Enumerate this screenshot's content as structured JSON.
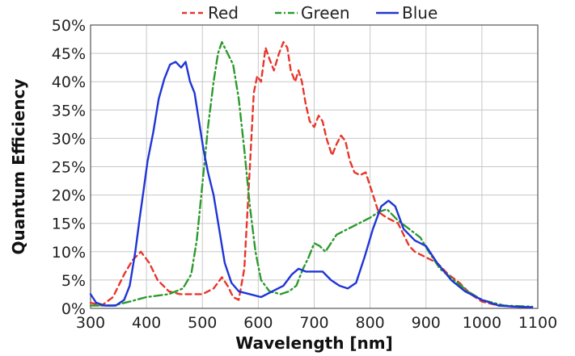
{
  "chart_data": {
    "type": "line",
    "title": "",
    "xlabel": "Wavelength [nm]",
    "ylabel": "Quantum Efficiency",
    "xlim": [
      300,
      1100
    ],
    "ylim": [
      0,
      50
    ],
    "x_ticks": [
      "300",
      "400",
      "500",
      "600",
      "700",
      "800",
      "900",
      "1000",
      "1100"
    ],
    "y_ticks": [
      "0%",
      "5%",
      "10%",
      "15%",
      "20%",
      "25%",
      "30%",
      "35%",
      "40%",
      "45%",
      "50%"
    ],
    "grid": true,
    "legend_position": "top",
    "series": [
      {
        "name": "Red",
        "color": "#e8362b",
        "dash": "dashed",
        "points": [
          [
            300,
            1
          ],
          [
            320,
            0.5
          ],
          [
            340,
            2
          ],
          [
            360,
            6
          ],
          [
            375,
            8.5
          ],
          [
            390,
            10
          ],
          [
            405,
            8
          ],
          [
            420,
            5
          ],
          [
            440,
            3
          ],
          [
            460,
            2.5
          ],
          [
            480,
            2.5
          ],
          [
            500,
            2.5
          ],
          [
            520,
            3.5
          ],
          [
            535,
            5.5
          ],
          [
            545,
            4
          ],
          [
            555,
            2
          ],
          [
            565,
            1.5
          ],
          [
            575,
            7
          ],
          [
            585,
            25
          ],
          [
            592,
            38
          ],
          [
            598,
            41
          ],
          [
            605,
            40
          ],
          [
            613,
            46
          ],
          [
            620,
            44
          ],
          [
            628,
            42
          ],
          [
            637,
            45
          ],
          [
            645,
            47
          ],
          [
            652,
            46
          ],
          [
            658,
            42
          ],
          [
            666,
            40
          ],
          [
            672,
            42
          ],
          [
            678,
            40
          ],
          [
            685,
            36
          ],
          [
            692,
            33
          ],
          [
            700,
            32
          ],
          [
            708,
            34
          ],
          [
            715,
            33
          ],
          [
            722,
            30
          ],
          [
            732,
            27
          ],
          [
            740,
            29
          ],
          [
            748,
            30.5
          ],
          [
            756,
            29.5
          ],
          [
            764,
            26
          ],
          [
            772,
            24
          ],
          [
            782,
            23.5
          ],
          [
            792,
            24
          ],
          [
            802,
            21
          ],
          [
            815,
            17
          ],
          [
            830,
            16
          ],
          [
            850,
            15
          ],
          [
            870,
            11
          ],
          [
            880,
            10
          ],
          [
            900,
            9
          ],
          [
            920,
            8
          ],
          [
            940,
            6
          ],
          [
            960,
            4.5
          ],
          [
            980,
            2.5
          ],
          [
            1000,
            1.2
          ],
          [
            1030,
            0.5
          ],
          [
            1060,
            0.3
          ],
          [
            1090,
            0.2
          ]
        ]
      },
      {
        "name": "Green",
        "color": "#2e9a2e",
        "dash": "dashdot",
        "points": [
          [
            300,
            0.5
          ],
          [
            340,
            0.5
          ],
          [
            370,
            1.2
          ],
          [
            400,
            2
          ],
          [
            440,
            2.5
          ],
          [
            465,
            3.5
          ],
          [
            480,
            6
          ],
          [
            490,
            12
          ],
          [
            500,
            22
          ],
          [
            510,
            32
          ],
          [
            520,
            40
          ],
          [
            528,
            45
          ],
          [
            535,
            47
          ],
          [
            545,
            45
          ],
          [
            555,
            43
          ],
          [
            565,
            37
          ],
          [
            575,
            28
          ],
          [
            585,
            18
          ],
          [
            595,
            10
          ],
          [
            605,
            5
          ],
          [
            620,
            3
          ],
          [
            640,
            2.5
          ],
          [
            655,
            3
          ],
          [
            668,
            4
          ],
          [
            680,
            7
          ],
          [
            690,
            9
          ],
          [
            700,
            11.5
          ],
          [
            710,
            11
          ],
          [
            720,
            10
          ],
          [
            740,
            13
          ],
          [
            760,
            14
          ],
          [
            780,
            15
          ],
          [
            800,
            16
          ],
          [
            815,
            17
          ],
          [
            830,
            17.5
          ],
          [
            850,
            15.5
          ],
          [
            870,
            14
          ],
          [
            890,
            12.5
          ],
          [
            905,
            10
          ],
          [
            925,
            7
          ],
          [
            950,
            5
          ],
          [
            975,
            3
          ],
          [
            1000,
            1.5
          ],
          [
            1040,
            0.5
          ],
          [
            1090,
            0.3
          ]
        ]
      },
      {
        "name": "Blue",
        "color": "#1f35d6",
        "dash": "solid",
        "points": [
          [
            300,
            2.5
          ],
          [
            310,
            1
          ],
          [
            325,
            0.5
          ],
          [
            345,
            0.5
          ],
          [
            360,
            1.5
          ],
          [
            370,
            4
          ],
          [
            380,
            10
          ],
          [
            388,
            16
          ],
          [
            395,
            21
          ],
          [
            402,
            26
          ],
          [
            412,
            31
          ],
          [
            422,
            37
          ],
          [
            432,
            40.5
          ],
          [
            442,
            43
          ],
          [
            452,
            43.5
          ],
          [
            462,
            42.5
          ],
          [
            470,
            43.5
          ],
          [
            478,
            40
          ],
          [
            486,
            38
          ],
          [
            494,
            33
          ],
          [
            502,
            28
          ],
          [
            510,
            24
          ],
          [
            520,
            20
          ],
          [
            530,
            14
          ],
          [
            540,
            8
          ],
          [
            552,
            4.5
          ],
          [
            565,
            3
          ],
          [
            585,
            2.5
          ],
          [
            605,
            2
          ],
          [
            625,
            3
          ],
          [
            645,
            4
          ],
          [
            660,
            6
          ],
          [
            672,
            7
          ],
          [
            685,
            6.5
          ],
          [
            700,
            6.5
          ],
          [
            715,
            6.5
          ],
          [
            730,
            5
          ],
          [
            745,
            4
          ],
          [
            760,
            3.5
          ],
          [
            775,
            4.5
          ],
          [
            790,
            9
          ],
          [
            805,
            14
          ],
          [
            820,
            18
          ],
          [
            833,
            19
          ],
          [
            845,
            18
          ],
          [
            860,
            14
          ],
          [
            880,
            12
          ],
          [
            900,
            11
          ],
          [
            920,
            8
          ],
          [
            945,
            5
          ],
          [
            970,
            3
          ],
          [
            1000,
            1.5
          ],
          [
            1030,
            0.5
          ],
          [
            1060,
            0.3
          ],
          [
            1090,
            0.2
          ]
        ]
      }
    ]
  }
}
